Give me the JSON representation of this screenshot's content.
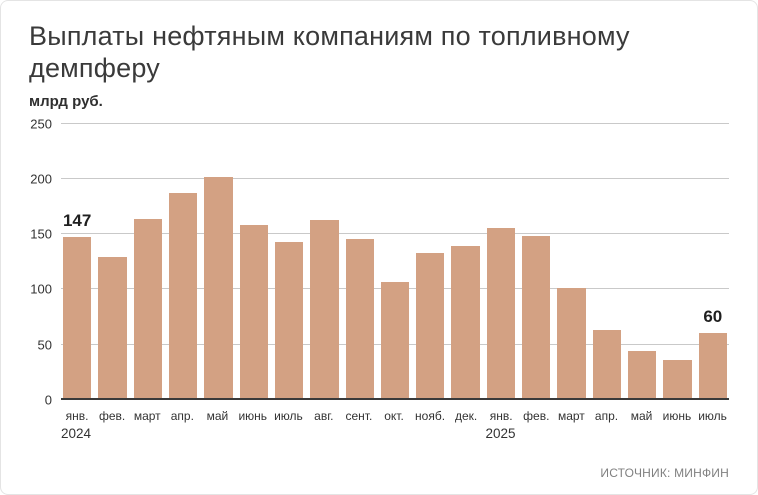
{
  "title": "Выплаты нефтяным компаниям по топливному демпферу",
  "unit_label": "млрд руб.",
  "source": "ИСТОЧНИК: МИНФИН",
  "colors": {
    "bar": "#d3a183",
    "grid": "#c9c9c9",
    "axis": "#3a3a3a"
  },
  "chart_data": {
    "type": "bar",
    "title": "Выплаты нефтяным компаниям по топливному демпферу",
    "ylabel": "млрд руб.",
    "ylim": [
      0,
      250
    ],
    "yticks": [
      0,
      50,
      100,
      150,
      200,
      250
    ],
    "grid": true,
    "legend": false,
    "categories": [
      "янв.",
      "фев.",
      "март",
      "апр.",
      "май",
      "июнь",
      "июль",
      "авг.",
      "сент.",
      "окт.",
      "нояб.",
      "дек.",
      "янв.",
      "фев.",
      "март",
      "апр.",
      "май",
      "июнь",
      "июль"
    ],
    "values": [
      147,
      129,
      164,
      187,
      202,
      158,
      143,
      163,
      146,
      107,
      133,
      139,
      156,
      148,
      101,
      63,
      44,
      36,
      60
    ],
    "year_labels": [
      {
        "text": "2024",
        "bar_index": 0,
        "align": "left"
      },
      {
        "text": "2025",
        "bar_index": 12,
        "align": "center"
      }
    ],
    "annotations": [
      {
        "bar_index": 0,
        "text": "147"
      },
      {
        "bar_index": 18,
        "text": "60"
      }
    ]
  }
}
